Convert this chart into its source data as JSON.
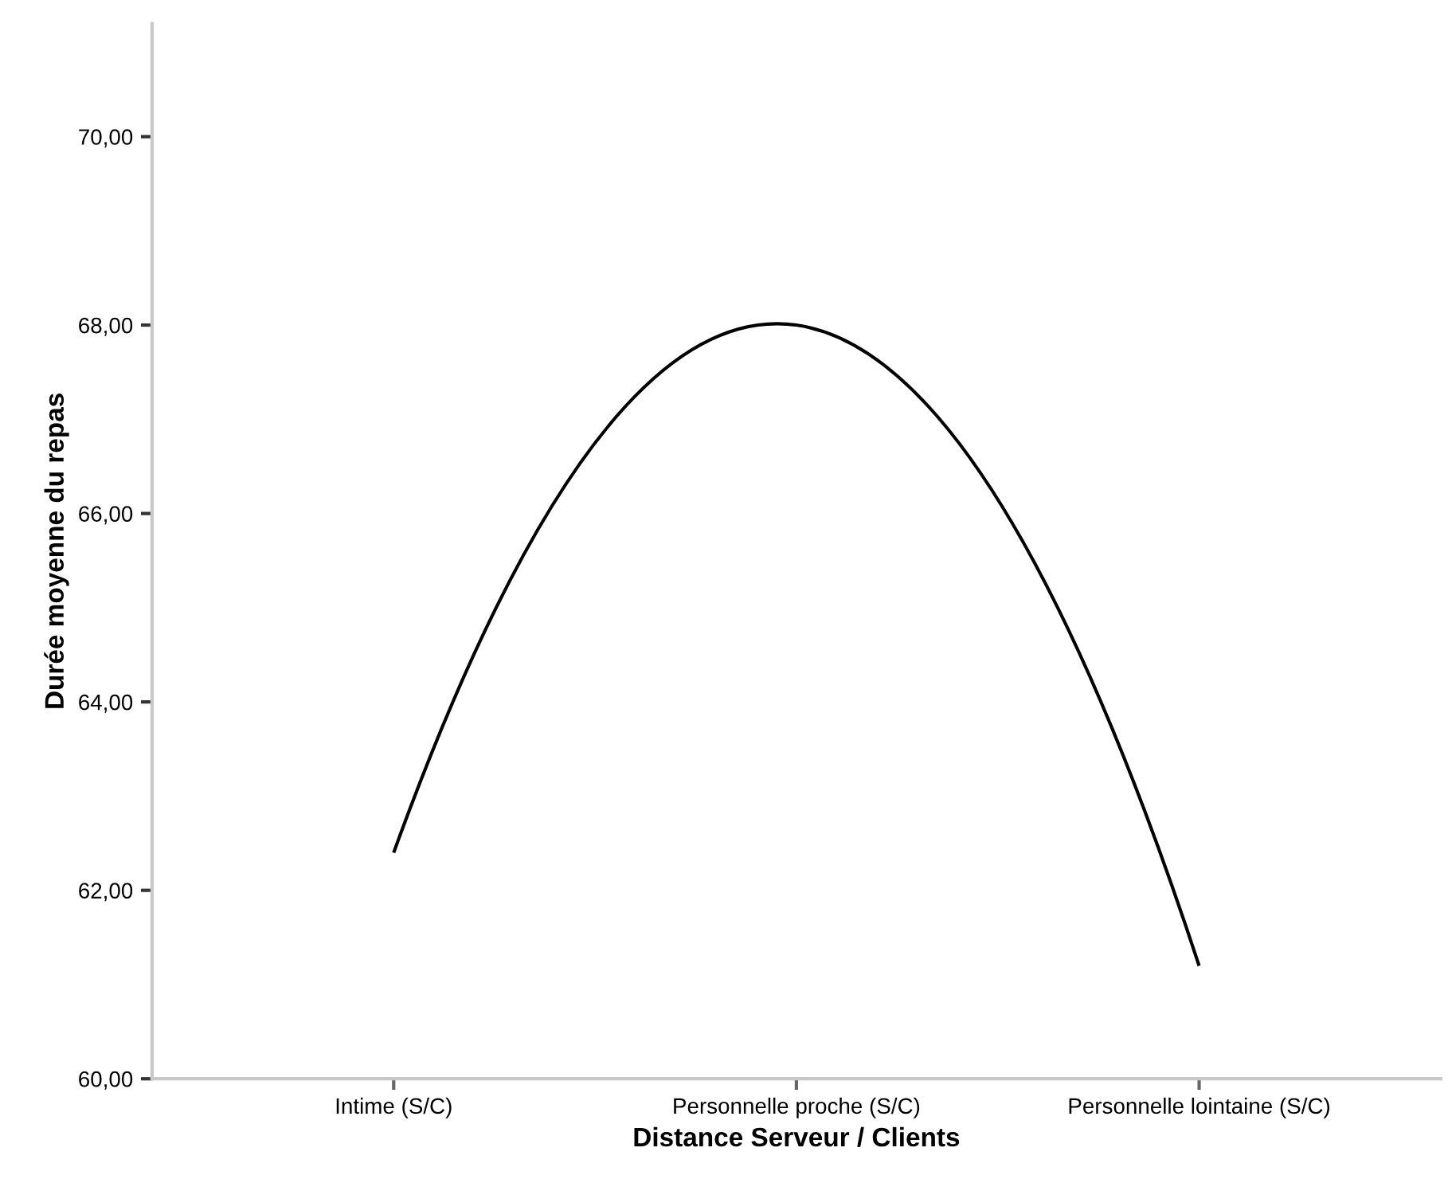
{
  "chart_data": {
    "type": "line",
    "xlabel": "Distance Serveur / Clients",
    "ylabel": "Durée moyenne du repas",
    "categories": [
      "Intime (S/C)",
      "Personnelle proche (S/C)",
      "Personnelle lointaine (S/C)"
    ],
    "series": [
      {
        "color": "#000000",
        "values": [
          62.4,
          68.0,
          61.2
        ]
      }
    ],
    "ylim": [
      60,
      71.2
    ],
    "yticks": [
      {
        "value": 60,
        "label": "60,00"
      },
      {
        "value": 62,
        "label": "62,00"
      },
      {
        "value": 64,
        "label": "64,00"
      },
      {
        "value": 66,
        "label": "66,00"
      },
      {
        "value": 68,
        "label": "68,00"
      },
      {
        "value": 70,
        "label": "70,00"
      }
    ],
    "grid": false,
    "legend": false,
    "marker": "none",
    "line_style": "solid"
  }
}
